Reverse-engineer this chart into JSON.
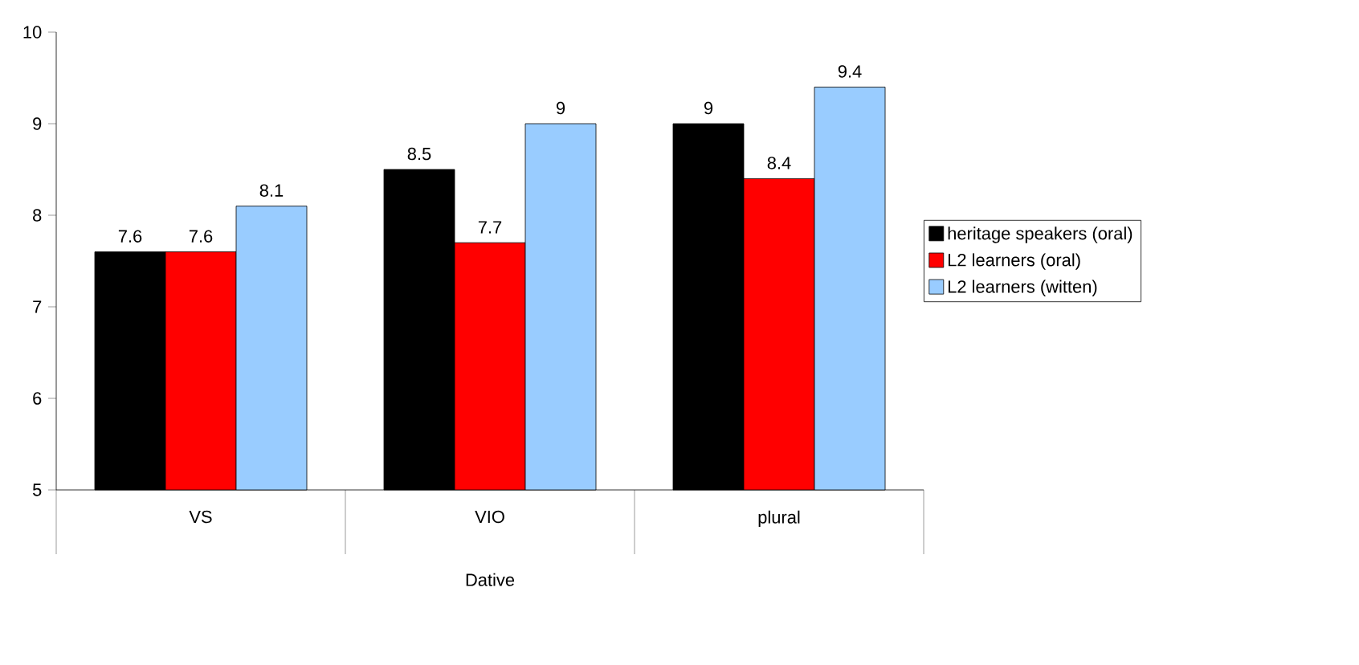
{
  "chart_data": {
    "type": "bar",
    "xlabel": "Dative",
    "categories": [
      "VS",
      "VIO",
      "plural"
    ],
    "series": [
      {
        "name": "heritage speakers (oral)",
        "color": "#000000",
        "values": [
          7.6,
          8.5,
          9
        ]
      },
      {
        "name": "L2 learners (oral)",
        "color": "#ff0000",
        "values": [
          7.6,
          7.7,
          8.4
        ]
      },
      {
        "name": "L2 learners (witten)",
        "color": "#99ccff",
        "values": [
          8.1,
          9,
          9.4
        ]
      }
    ],
    "ylim": [
      5,
      10
    ],
    "yticks": [
      5,
      6,
      7,
      8,
      9,
      10
    ],
    "grid": false,
    "legend": "right",
    "data_labels": true
  }
}
